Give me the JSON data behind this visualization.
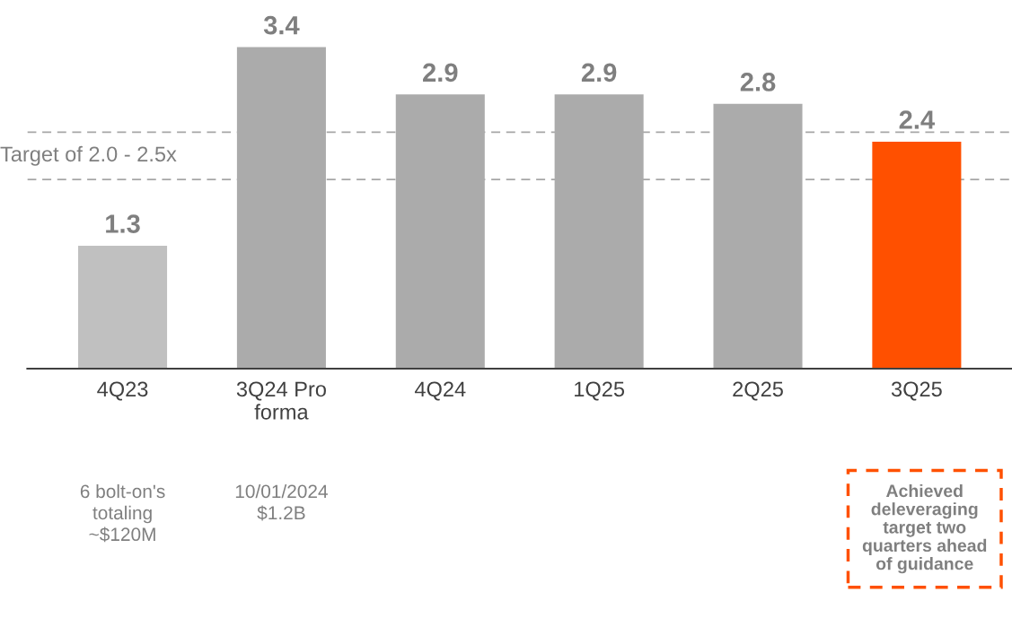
{
  "chart_data": {
    "type": "bar",
    "categories": [
      "4Q23",
      "3Q24 Pro\nforma",
      "4Q24",
      "1Q25",
      "2Q25",
      "3Q25"
    ],
    "values": [
      1.3,
      3.4,
      2.9,
      2.9,
      2.8,
      2.4
    ],
    "colors": [
      "#c0c0c0",
      "#ababab",
      "#ababab",
      "#ababab",
      "#ababab",
      "#ff5000"
    ],
    "data_labels": true,
    "ref_lines": [
      {
        "axis": "y",
        "value": 2.0,
        "label": "Target of 2.0 - 2.5x",
        "color": "#a6a6a6",
        "line_style": "dashed"
      },
      {
        "axis": "y",
        "value": 2.5,
        "color": "#a6a6a6",
        "line_style": "dashed"
      }
    ],
    "annotations": [
      "6 bolt-on's\ntotaling\n~$120M",
      "10/01/2024\n$1.2B",
      "Achieved\ndeleveraging\ntarget two\nquarters ahead\nof guidance"
    ],
    "grid": false,
    "legend": false
  }
}
